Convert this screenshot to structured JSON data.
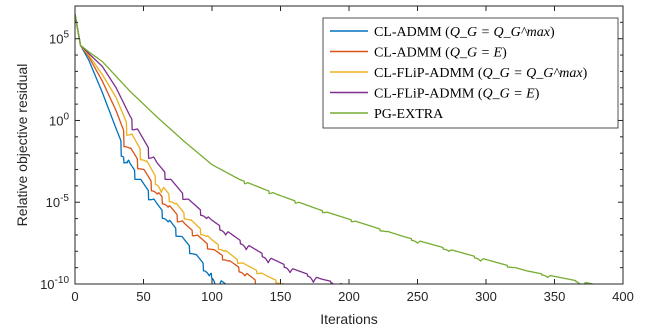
{
  "chart_data": {
    "type": "line",
    "xlabel": "Iterations",
    "ylabel": "Relative objective residual",
    "xlim": [
      0,
      400
    ],
    "ylim_log10": [
      -10,
      7
    ],
    "y_scale": "log",
    "x_ticks": [
      0,
      50,
      100,
      150,
      200,
      250,
      300,
      350,
      400
    ],
    "y_ticks": [
      {
        "exp": 5,
        "label_base": "10",
        "label_exp": "5"
      },
      {
        "exp": 0,
        "label_base": "10",
        "label_exp": "0"
      },
      {
        "exp": -5,
        "label_base": "10",
        "label_exp": "-5"
      },
      {
        "exp": -10,
        "label_base": "10",
        "label_exp": "-10"
      }
    ],
    "grid": false,
    "legend_position": "top-right",
    "series": [
      {
        "name": "CL-ADMM (Q_G = Q_G^max)",
        "legend_prefix": "CL-ADMM (",
        "legend_math": "Q_G = Q_G^max",
        "legend_suffix": ")",
        "color": "#0072BD",
        "envelope_log10": [
          [
            0,
            6.5
          ],
          [
            4,
            4.6
          ],
          [
            10,
            3.7
          ],
          [
            20,
            1.7
          ],
          [
            30,
            -0.5
          ],
          [
            40,
            -2.6
          ],
          [
            60,
            -5.1
          ],
          [
            80,
            -7.3
          ],
          [
            100,
            -9.4
          ],
          [
            120,
            -10.6
          ]
        ],
        "dips": [
          [
            38,
            -2.6
          ],
          [
            40,
            -2.3
          ],
          [
            48,
            -3.6
          ],
          [
            58,
            -4.8
          ],
          [
            68,
            -6.2
          ],
          [
            78,
            -7.1
          ],
          [
            88,
            -8.2
          ],
          [
            98,
            -9.5
          ],
          [
            104,
            -10.8
          ]
        ],
        "x_end": 120
      },
      {
        "name": "CL-ADMM (Q_G = E)",
        "legend_prefix": "CL-ADMM (",
        "legend_math": "Q_G = E",
        "legend_suffix": ")",
        "color": "#D95319",
        "envelope_log10": [
          [
            0,
            6.5
          ],
          [
            4,
            4.6
          ],
          [
            10,
            3.9
          ],
          [
            20,
            2.4
          ],
          [
            30,
            0.6
          ],
          [
            40,
            -1.6
          ],
          [
            60,
            -4.3
          ],
          [
            80,
            -6.3
          ],
          [
            100,
            -7.8
          ],
          [
            120,
            -9.0
          ],
          [
            140,
            -10.3
          ],
          [
            150,
            -10.9
          ]
        ],
        "dips": [
          [
            40,
            -1.7
          ],
          [
            50,
            -3.0
          ],
          [
            60,
            -4.5
          ],
          [
            68,
            -5.3
          ],
          [
            79,
            -6.1
          ],
          [
            90,
            -7.0
          ],
          [
            101,
            -7.9
          ],
          [
            112,
            -8.6
          ],
          [
            124,
            -9.5
          ],
          [
            136,
            -10.4
          ],
          [
            142,
            -10.9
          ]
        ],
        "x_end": 150
      },
      {
        "name": "CL-FLiP-ADMM (Q_G = Q_G^max)",
        "legend_prefix": "CL-FLiP-ADMM (",
        "legend_math": "Q_G = Q_G^max",
        "legend_suffix": ")",
        "color": "#EDB120",
        "envelope_log10": [
          [
            0,
            6.5
          ],
          [
            4,
            4.6
          ],
          [
            10,
            4.0
          ],
          [
            20,
            2.8
          ],
          [
            30,
            1.4
          ],
          [
            40,
            -0.6
          ],
          [
            60,
            -3.6
          ],
          [
            80,
            -5.7
          ],
          [
            100,
            -7.3
          ],
          [
            120,
            -8.6
          ],
          [
            140,
            -9.5
          ],
          [
            160,
            -10.3
          ],
          [
            175,
            -10.9
          ]
        ],
        "dips": [
          [
            42,
            -0.8
          ],
          [
            52,
            -2.5
          ],
          [
            63,
            -4.4
          ],
          [
            73,
            -5.1
          ],
          [
            84,
            -6.1
          ],
          [
            96,
            -7.1
          ],
          [
            109,
            -8.0
          ],
          [
            123,
            -8.7
          ],
          [
            137,
            -9.3
          ],
          [
            151,
            -10.0
          ],
          [
            165,
            -10.5
          ],
          [
            178,
            -11.0
          ]
        ],
        "x_end": 180
      },
      {
        "name": "CL-FLiP-ADMM (Q_G = E)",
        "legend_prefix": "CL-FLiP-ADMM (",
        "legend_math": "Q_G = E",
        "legend_suffix": ")",
        "color": "#7E2F8E",
        "envelope_log10": [
          [
            0,
            6.5
          ],
          [
            4,
            4.6
          ],
          [
            10,
            4.1
          ],
          [
            20,
            3.3
          ],
          [
            30,
            2.0
          ],
          [
            40,
            0.3
          ],
          [
            60,
            -2.6
          ],
          [
            80,
            -4.6
          ],
          [
            100,
            -6.1
          ],
          [
            120,
            -7.3
          ],
          [
            140,
            -8.3
          ],
          [
            160,
            -9.1
          ],
          [
            180,
            -9.7
          ],
          [
            200,
            -10.1
          ],
          [
            215,
            -10.6
          ]
        ],
        "dips": [
          [
            46,
            -0.5
          ],
          [
            58,
            -2.2
          ],
          [
            70,
            -3.6
          ],
          [
            83,
            -4.8
          ],
          [
            96,
            -6.0
          ],
          [
            110,
            -7.0
          ],
          [
            125,
            -7.9
          ],
          [
            141,
            -8.7
          ],
          [
            157,
            -9.3
          ],
          [
            174,
            -9.9
          ],
          [
            191,
            -10.4
          ],
          [
            208,
            -10.8
          ]
        ],
        "x_end": 215
      },
      {
        "name": "PG-EXTRA",
        "legend_prefix": "PG-EXTRA",
        "legend_math": "",
        "legend_suffix": "",
        "color": "#77AC30",
        "envelope_log10": [
          [
            0,
            6.5
          ],
          [
            4,
            4.6
          ],
          [
            10,
            4.2
          ],
          [
            20,
            3.6
          ],
          [
            30,
            2.7
          ],
          [
            40,
            1.8
          ],
          [
            60,
            0.2
          ],
          [
            80,
            -1.3
          ],
          [
            100,
            -2.7
          ],
          [
            120,
            -3.6
          ],
          [
            150,
            -4.6
          ],
          [
            180,
            -5.5
          ],
          [
            210,
            -6.3
          ],
          [
            240,
            -7.1
          ],
          [
            270,
            -7.8
          ],
          [
            300,
            -8.5
          ],
          [
            330,
            -9.2
          ],
          [
            360,
            -9.7
          ],
          [
            390,
            -10.2
          ],
          [
            400,
            -10.4
          ]
        ],
        "dips": [
          [
            128,
            -3.6
          ],
          [
            146,
            -4.3
          ],
          [
            165,
            -4.9
          ],
          [
            185,
            -5.6
          ],
          [
            206,
            -6.1
          ],
          [
            227,
            -6.8
          ],
          [
            250,
            -7.5
          ],
          [
            273,
            -8.0
          ],
          [
            296,
            -8.6
          ],
          [
            320,
            -9.0
          ],
          [
            345,
            -9.6
          ],
          [
            370,
            -10.2
          ],
          [
            395,
            -10.6
          ]
        ],
        "x_end": 400
      }
    ]
  }
}
